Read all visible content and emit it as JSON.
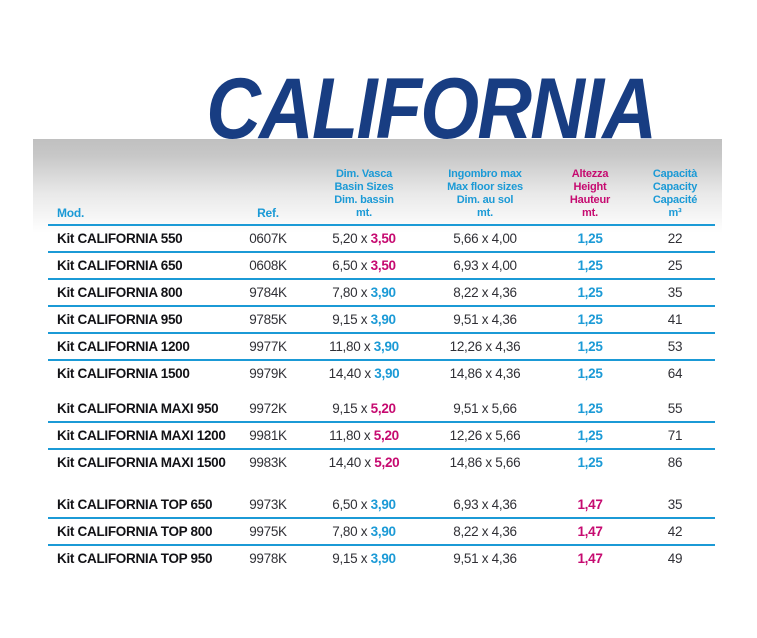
{
  "page": {
    "title": "CALIFORNIA"
  },
  "colors": {
    "navy": "#183d82",
    "cyan": "#1b9ad6",
    "magenta": "#c60a70",
    "band_gray": "#c0c0c0",
    "text_dark": "#303036"
  },
  "table": {
    "headers": {
      "mod": "Mod.",
      "ref": "Ref.",
      "basin": {
        "lines": [
          "Dim. Vasca",
          "Basin Sizes",
          "Dim. bassin",
          "mt."
        ]
      },
      "floor": {
        "lines": [
          "Ingombro max",
          "Max floor sizes",
          "Dim. au sol",
          "mt."
        ]
      },
      "height": {
        "lines": [
          "Altezza",
          "Height",
          "Hauteur",
          "mt."
        ]
      },
      "capacity": {
        "lines": [
          "Capacità",
          "Capacity",
          "Capacité",
          "m³"
        ]
      }
    },
    "groups": [
      {
        "rows": [
          {
            "model": "Kit CALIFORNIA 550",
            "ref": "0607K",
            "basin_a": "5,20 x ",
            "basin_b": "3,50",
            "basin_color": "magenta",
            "floor": "5,66 x 4,00",
            "height": "1,25",
            "height_color": "cyan",
            "capacity": "22"
          },
          {
            "model": "Kit CALIFORNIA 650",
            "ref": "0608K",
            "basin_a": "6,50 x ",
            "basin_b": "3,50",
            "basin_color": "magenta",
            "floor": "6,93 x 4,00",
            "height": "1,25",
            "height_color": "cyan",
            "capacity": "25"
          },
          {
            "model": "Kit CALIFORNIA 800",
            "ref": "9784K",
            "basin_a": "7,80 x ",
            "basin_b": "3,90",
            "basin_color": "cyan",
            "floor": "8,22 x 4,36",
            "height": "1,25",
            "height_color": "cyan",
            "capacity": "35"
          },
          {
            "model": "Kit CALIFORNIA 950",
            "ref": "9785K",
            "basin_a": "9,15 x ",
            "basin_b": "3,90",
            "basin_color": "cyan",
            "floor": "9,51 x 4,36",
            "height": "1,25",
            "height_color": "cyan",
            "capacity": "41"
          },
          {
            "model": "Kit CALIFORNIA 1200",
            "ref": "9977K",
            "basin_a": "11,80 x ",
            "basin_b": "3,90",
            "basin_color": "cyan",
            "floor": "12,26 x 4,36",
            "height": "1,25",
            "height_color": "cyan",
            "capacity": "53"
          },
          {
            "model": "Kit CALIFORNIA 1500",
            "ref": "9979K",
            "basin_a": "14,40 x ",
            "basin_b": "3,90",
            "basin_color": "cyan",
            "floor": "14,86 x 4,36",
            "height": "1,25",
            "height_color": "cyan",
            "capacity": "64"
          }
        ]
      },
      {
        "rows": [
          {
            "model": "Kit CALIFORNIA MAXI 950",
            "ref": "9972K",
            "basin_a": "9,15 x ",
            "basin_b": "5,20",
            "basin_color": "magenta",
            "floor": "9,51 x 5,66",
            "height": "1,25",
            "height_color": "cyan",
            "capacity": "55"
          },
          {
            "model": "Kit CALIFORNIA MAXI 1200",
            "ref": "9981K",
            "basin_a": "11,80 x ",
            "basin_b": "5,20",
            "basin_color": "magenta",
            "floor": "12,26 x 5,66",
            "height": "1,25",
            "height_color": "cyan",
            "capacity": "71"
          },
          {
            "model": "Kit CALIFORNIA MAXI 1500",
            "ref": "9983K",
            "basin_a": "14,40 x ",
            "basin_b": "5,20",
            "basin_color": "magenta",
            "floor": "14,86 x 5,66",
            "height": "1,25",
            "height_color": "cyan",
            "capacity": "86"
          }
        ]
      },
      {
        "rows": [
          {
            "model": "Kit CALIFORNIA TOP 650",
            "ref": "9973K",
            "basin_a": "6,50 x ",
            "basin_b": "3,90",
            "basin_color": "cyan",
            "floor": "6,93 x 4,36",
            "height": "1,47",
            "height_color": "magenta",
            "capacity": "35"
          },
          {
            "model": "Kit CALIFORNIA TOP 800",
            "ref": "9975K",
            "basin_a": "7,80 x ",
            "basin_b": "3,90",
            "basin_color": "cyan",
            "floor": "8,22 x 4,36",
            "height": "1,47",
            "height_color": "magenta",
            "capacity": "42"
          },
          {
            "model": "Kit CALIFORNIA TOP 950",
            "ref": "9978K",
            "basin_a": "9,15 x ",
            "basin_b": "3,90",
            "basin_color": "cyan",
            "floor": "9,51 x 4,36",
            "height": "1,47",
            "height_color": "magenta",
            "capacity": "49"
          }
        ]
      }
    ]
  }
}
